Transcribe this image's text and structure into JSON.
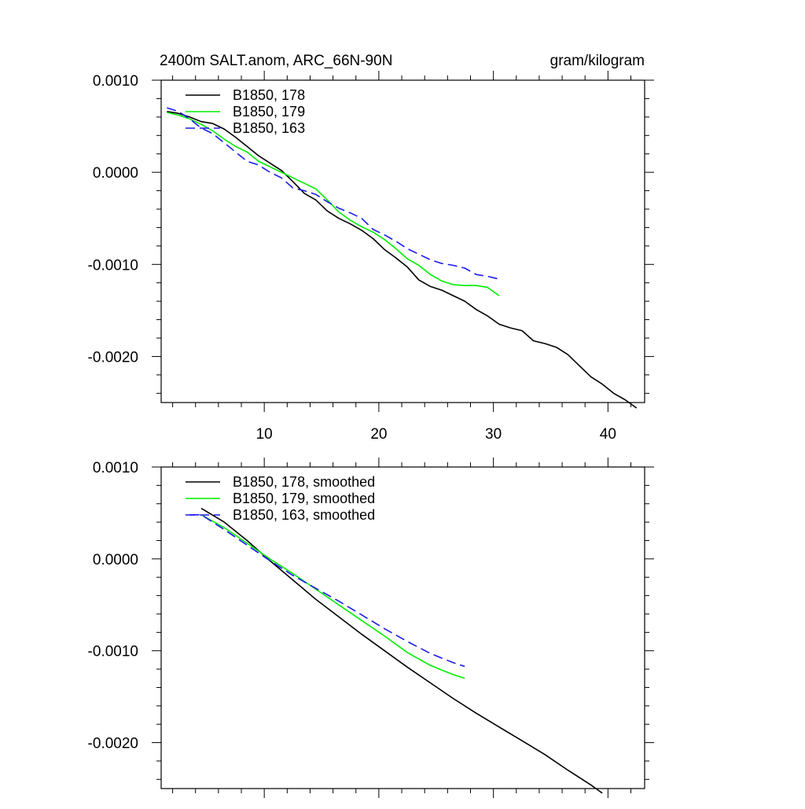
{
  "chart_data": [
    {
      "type": "line",
      "title_left": "2400m SALT.anom, ARC_66N-90N",
      "title_right": "gram/kilogram",
      "xlim": [
        1,
        43.2
      ],
      "ylim": [
        -0.0025,
        0.001
      ],
      "xticks": [
        10,
        20,
        30,
        40
      ],
      "xtick_labels": [
        "10",
        "20",
        "30",
        "40"
      ],
      "yticks": [
        0.001,
        0.0,
        -0.001,
        -0.002
      ],
      "ytick_labels": [
        "0.0010",
        "0.0000",
        "-0.0010",
        "-0.0020"
      ],
      "legend_position": "top-left",
      "series": [
        {
          "name": "B1850, 178",
          "color": "#000000",
          "dash": "solid",
          "x": [
            1.5,
            2.5,
            3.5,
            4.5,
            5.5,
            6.5,
            7.5,
            8.5,
            9.5,
            10.5,
            11.5,
            12.5,
            13.5,
            14.5,
            15.5,
            16.5,
            17.5,
            18.5,
            19.5,
            20.5,
            21.5,
            22.5,
            23.5,
            24.5,
            25.5,
            26.5,
            27.5,
            28.5,
            29.5,
            30.5,
            31.5,
            32.5,
            33.5,
            34.5,
            35.5,
            36.5,
            37.5,
            38.5,
            39.5,
            40.5,
            41.5,
            42.5
          ],
          "y": [
            0.00066,
            0.00064,
            0.0006,
            0.00055,
            0.00053,
            0.00047,
            0.00038,
            0.00028,
            0.00018,
            0.0001,
            2e-05,
            -0.0001,
            -0.00023,
            -0.0003,
            -0.00042,
            -0.0005,
            -0.00056,
            -0.00063,
            -0.00072,
            -0.00084,
            -0.00093,
            -0.00103,
            -0.00117,
            -0.00124,
            -0.00128,
            -0.00134,
            -0.0014,
            -0.00149,
            -0.00156,
            -0.00165,
            -0.00169,
            -0.00172,
            -0.00183,
            -0.00186,
            -0.0019,
            -0.00198,
            -0.0021,
            -0.00222,
            -0.0023,
            -0.0024,
            -0.00247,
            -0.00256
          ]
        },
        {
          "name": "B1850, 179",
          "color": "#00ee00",
          "dash": "solid",
          "x": [
            1.5,
            2.5,
            3.5,
            4.5,
            5.5,
            6.5,
            7.5,
            8.5,
            9.5,
            10.5,
            11.5,
            12.5,
            13.5,
            14.5,
            15.5,
            16.5,
            17.5,
            18.5,
            19.5,
            20.5,
            21.5,
            22.5,
            23.5,
            24.5,
            25.5,
            26.5,
            27.5,
            28.5,
            29.5,
            30.5
          ],
          "y": [
            0.00065,
            0.00062,
            0.00058,
            0.00052,
            0.00045,
            0.00036,
            0.00028,
            0.00022,
            0.00012,
            6e-05,
            0.0,
            -6e-05,
            -0.00012,
            -0.00018,
            -0.0003,
            -0.00043,
            -0.00052,
            -0.00059,
            -0.00065,
            -0.00073,
            -0.00083,
            -0.00094,
            -0.00101,
            -0.00111,
            -0.00118,
            -0.00122,
            -0.00123,
            -0.00123,
            -0.00125,
            -0.00134
          ]
        },
        {
          "name": "B1850, 163",
          "color": "#1a1aee",
          "dash": "dashed",
          "x": [
            1.5,
            2.5,
            3.5,
            4.5,
            5.5,
            6.5,
            7.5,
            8.5,
            9.5,
            10.5,
            11.5,
            12.5,
            13.5,
            14.5,
            15.5,
            16.5,
            17.5,
            18.5,
            19.5,
            20.5,
            21.5,
            22.5,
            23.5,
            24.5,
            25.5,
            26.5,
            27.5,
            28.5,
            29.5,
            30.5
          ],
          "y": [
            0.0007,
            0.00066,
            0.00058,
            0.00048,
            0.00042,
            0.00032,
            0.00022,
            0.00012,
            8e-05,
            0.0,
            -6e-05,
            -0.00017,
            -0.0002,
            -0.00024,
            -0.00032,
            -0.00039,
            -0.00044,
            -0.0005,
            -0.00062,
            -0.00068,
            -0.00075,
            -0.00083,
            -0.00089,
            -0.00095,
            -0.00099,
            -0.00101,
            -0.00104,
            -0.00111,
            -0.00113,
            -0.00116
          ]
        }
      ]
    },
    {
      "type": "line",
      "xlim": [
        1,
        43.2
      ],
      "ylim": [
        -0.0025,
        0.001
      ],
      "xticks": [
        10,
        20,
        30,
        40
      ],
      "xtick_labels": [],
      "yticks": [
        0.001,
        0.0,
        -0.001,
        -0.002
      ],
      "ytick_labels": [
        "0.0010",
        "0.0000",
        "-0.0010",
        "-0.0020"
      ],
      "legend_position": "top-left",
      "series": [
        {
          "name": "B1850, 178, smoothed",
          "color": "#000000",
          "dash": "solid",
          "x": [
            4.5,
            6.5,
            8.5,
            10.5,
            12.5,
            14.5,
            16.5,
            18.5,
            20.5,
            22.5,
            24.5,
            26.5,
            28.5,
            30.5,
            32.5,
            34.5,
            36.5,
            38.5,
            39.5
          ],
          "y": [
            0.00055,
            0.0004,
            0.0002,
            -2e-05,
            -0.00023,
            -0.00044,
            -0.00063,
            -0.00082,
            -0.001,
            -0.00118,
            -0.00135,
            -0.00152,
            -0.00168,
            -0.00183,
            -0.00198,
            -0.00213,
            -0.0023,
            -0.00246,
            -0.00255
          ]
        },
        {
          "name": "B1850, 179, smoothed",
          "color": "#00ee00",
          "dash": "solid",
          "x": [
            4.5,
            6.5,
            8.5,
            10.5,
            12.5,
            14.5,
            16.5,
            18.5,
            20.5,
            22.5,
            24.5,
            26.5,
            27.5
          ],
          "y": [
            0.00048,
            0.00034,
            0.00017,
            0.0,
            -0.00016,
            -0.00033,
            -0.0005,
            -0.00067,
            -0.00084,
            -0.00102,
            -0.00116,
            -0.00126,
            -0.0013
          ]
        },
        {
          "name": "B1850, 163, smoothed",
          "color": "#1a1aee",
          "dash": "dashed",
          "x": [
            3.5,
            4.5,
            6.5,
            8.5,
            10.5,
            12.5,
            14.5,
            16.5,
            18.5,
            20.5,
            22.5,
            24.5,
            26.5,
            27.5
          ],
          "y": [
            0.00048,
            0.00048,
            0.00032,
            0.00015,
            -2e-05,
            -0.00018,
            -0.00032,
            -0.00046,
            -0.00061,
            -0.00076,
            -0.0009,
            -0.00103,
            -0.00113,
            -0.00117
          ]
        }
      ]
    }
  ]
}
